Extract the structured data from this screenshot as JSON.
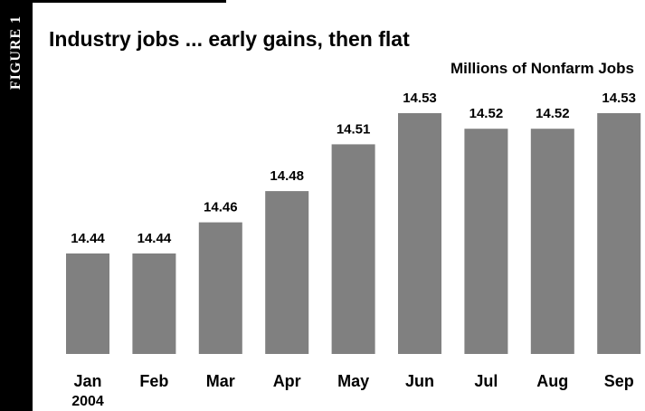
{
  "figure_label": "FIGURE 1",
  "chart_data": {
    "type": "bar",
    "title": "Industry jobs ... early gains, then flat",
    "ylabel": "Millions of Nonfarm Jobs",
    "xlabel": "",
    "categories": [
      "Jan",
      "Feb",
      "Mar",
      "Apr",
      "May",
      "Jun",
      "Jul",
      "Aug",
      "Sep"
    ],
    "year_label": "2004",
    "values": [
      14.44,
      14.44,
      14.46,
      14.48,
      14.51,
      14.53,
      14.52,
      14.52,
      14.53
    ],
    "value_labels": [
      "14.44",
      "14.44",
      "14.46",
      "14.48",
      "14.51",
      "14.53",
      "14.52",
      "14.52",
      "14.53"
    ],
    "bar_color": "#808080",
    "grid": false,
    "legend": "none"
  }
}
